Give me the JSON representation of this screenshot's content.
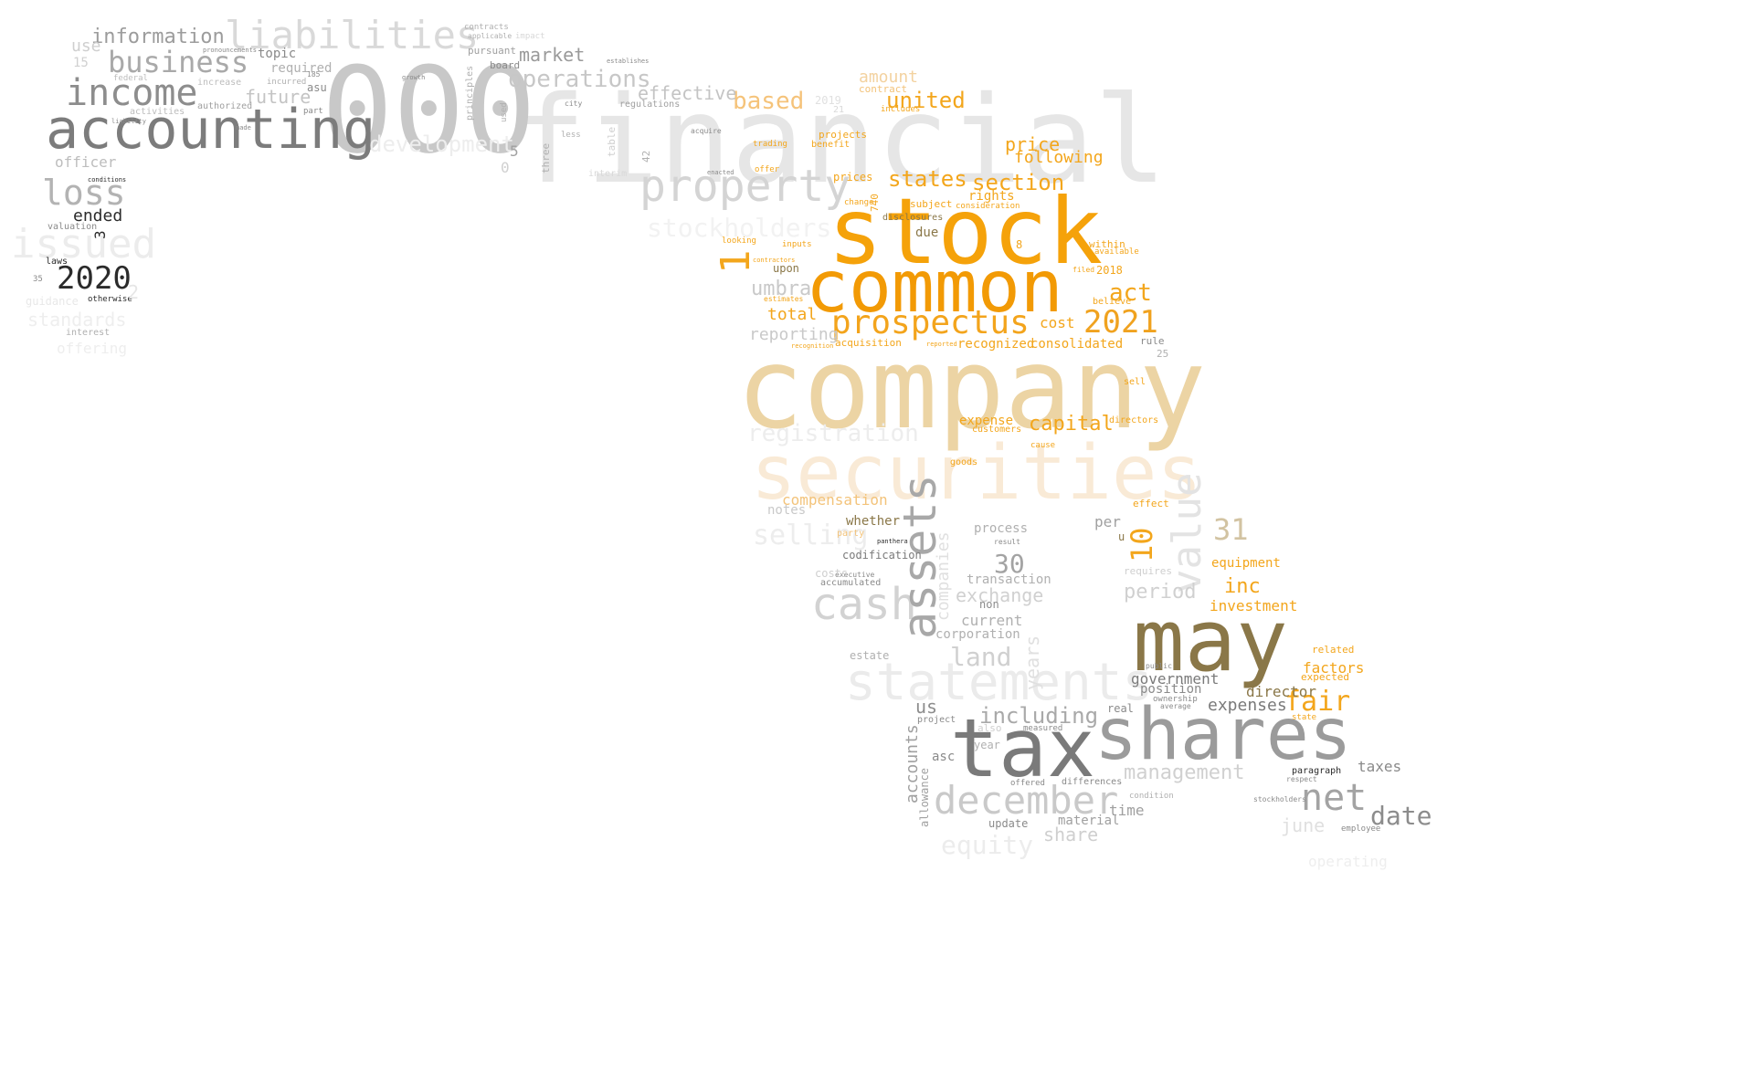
{
  "words": [
    {
      "id": "financial",
      "text": "financial",
      "color": "#e6e6e6"
    },
    {
      "id": "company",
      "text": "company",
      "color": "#ecd4a4"
    },
    {
      "id": "stock",
      "text": "stock",
      "color": "#f5a20a"
    },
    {
      "id": "common",
      "text": "common",
      "color": "#f29a05"
    },
    {
      "id": "000",
      "text": "000",
      "color": "#c8c8c8"
    },
    {
      "id": "securities",
      "text": "securities",
      "color": "#f9ead6"
    },
    {
      "id": "may",
      "text": "may",
      "color": "#8a7748"
    },
    {
      "id": "tax",
      "text": "tax",
      "color": "#7a7a7a"
    },
    {
      "id": "shares",
      "text": "shares",
      "color": "#9b9b9b"
    },
    {
      "id": "accounting",
      "text": "accounting",
      "color": "#7c7c7c"
    },
    {
      "id": "statements",
      "text": "statements",
      "color": "#ebebeb"
    },
    {
      "id": "prospectus",
      "text": "prospectus",
      "color": "#f3a41c"
    },
    {
      "id": "property",
      "text": "property",
      "color": "#d4d4d4"
    },
    {
      "id": "liabilities",
      "text": "liabilities",
      "color": "#d9d9d9"
    },
    {
      "id": "income",
      "text": "income",
      "color": "#8d8d8d"
    },
    {
      "id": "business",
      "text": "business",
      "color": "#a9a9a9"
    },
    {
      "id": "loss",
      "text": "loss",
      "color": "#b3b3b3"
    },
    {
      "id": "issued",
      "text": "issued",
      "color": "#ececec"
    },
    {
      "id": "2020",
      "text": "2020",
      "color": "#2b2b2b"
    },
    {
      "id": "cash",
      "text": "cash",
      "color": "#d2d2d2"
    },
    {
      "id": "assets",
      "text": "assets",
      "color": "#a8a8a8"
    },
    {
      "id": "value",
      "text": "value",
      "color": "#e3e3e3"
    },
    {
      "id": "december",
      "text": "december",
      "color": "#c9c9c9"
    },
    {
      "id": "net",
      "text": "net",
      "color": "#a3a3a3"
    },
    {
      "id": "2021",
      "text": "2021",
      "color": "#f0a21f"
    },
    {
      "id": "operations",
      "text": "operations",
      "color": "#c7c7c7"
    },
    {
      "id": "registration",
      "text": "registration",
      "color": "#ededed"
    },
    {
      "id": "united",
      "text": "united",
      "color": "#f3a61c"
    },
    {
      "id": "states",
      "text": "states",
      "color": "#f3a61c"
    },
    {
      "id": "section",
      "text": "section",
      "color": "#f3a61c"
    },
    {
      "id": "information",
      "text": "information",
      "color": "#9c9c9c"
    },
    {
      "id": "development",
      "text": "development",
      "color": "#ededed"
    },
    {
      "id": "stockholders",
      "text": "stockholders",
      "color": "#f2f2f2"
    },
    {
      "id": "selling",
      "text": "selling",
      "color": "#ededed"
    },
    {
      "id": "fair",
      "text": "fair",
      "color": "#f3a61c"
    },
    {
      "id": "including",
      "text": "including",
      "color": "#a9a9a9"
    },
    {
      "id": "date",
      "text": "date",
      "color": "#8c8c8c"
    },
    {
      "id": "management",
      "text": "management",
      "color": "#d0d0d0"
    },
    {
      "id": "act",
      "text": "act",
      "color": "#f3a61c"
    },
    {
      "id": "capital",
      "text": "capital",
      "color": "#f3a61c"
    },
    {
      "id": "based",
      "text": "based",
      "color": "#f5c37a"
    },
    {
      "id": "umbra",
      "text": "umbra",
      "color": "#c9c9c9"
    },
    {
      "id": "market",
      "text": "market",
      "color": "#9a9a9a"
    },
    {
      "id": "future",
      "text": "future",
      "color": "#c4c4c4"
    },
    {
      "id": "effective",
      "text": "effective",
      "color": "#c4c4c4"
    },
    {
      "id": "price",
      "text": "price",
      "color": "#f3a61c"
    },
    {
      "id": "following",
      "text": "following",
      "color": "#f3a61c"
    },
    {
      "id": "land",
      "text": "land",
      "color": "#d0d0d0"
    },
    {
      "id": "exchange",
      "text": "exchange",
      "color": "#d0d0d0"
    },
    {
      "id": "period",
      "text": "period",
      "color": "#d0d0d0"
    },
    {
      "id": "equity",
      "text": "equity",
      "color": "#ececec"
    },
    {
      "id": "share",
      "text": "share",
      "color": "#cfcfcf"
    },
    {
      "id": "ended",
      "text": "ended",
      "color": "#2b2b2b"
    },
    {
      "id": "officer",
      "text": "officer",
      "color": "#bdbdbd"
    },
    {
      "id": "standards",
      "text": "standards",
      "color": "#eeeeee"
    },
    {
      "id": "30",
      "text": "30",
      "color": "#a3a3a3"
    },
    {
      "id": "31",
      "text": "31",
      "color": "#d2c3a2"
    },
    {
      "id": "10",
      "text": "10",
      "color": "#f3a61c"
    },
    {
      "id": "us",
      "text": "us",
      "color": "#8d8d8d"
    },
    {
      "id": "amount",
      "text": "amount",
      "color": "#f3d2a0"
    },
    {
      "id": "total",
      "text": "total",
      "color": "#f3a61c"
    },
    {
      "id": "reporting",
      "text": "reporting",
      "color": "#c9c9c9"
    },
    {
      "id": "cost",
      "text": "cost",
      "color": "#f3a61c"
    },
    {
      "id": "recognized",
      "text": "recognized",
      "color": "#f3a61c"
    },
    {
      "id": "consolidated",
      "text": "consolidated",
      "color": "#f3a61c"
    },
    {
      "id": "expense",
      "text": "expense",
      "color": "#f3a61c"
    },
    {
      "id": "compensation",
      "text": "compensation",
      "color": "#f3c37a"
    },
    {
      "id": "notes",
      "text": "notes",
      "color": "#c9c9c9"
    },
    {
      "id": "whether",
      "text": "whether",
      "color": "#8a7748"
    },
    {
      "id": "codification",
      "text": "codification",
      "color": "#7a7a7a"
    },
    {
      "id": "process",
      "text": "process",
      "color": "#b0b0b0"
    },
    {
      "id": "transaction",
      "text": "transaction",
      "color": "#b0b0b0"
    },
    {
      "id": "current",
      "text": "current",
      "color": "#b0b0b0"
    },
    {
      "id": "corporation",
      "text": "corporation",
      "color": "#b0b0b0"
    },
    {
      "id": "non",
      "text": "non",
      "color": "#8a8a8a"
    },
    {
      "id": "inc",
      "text": "inc",
      "color": "#f3a61c"
    },
    {
      "id": "investment",
      "text": "investment",
      "color": "#f3a61c"
    },
    {
      "id": "equipment",
      "text": "equipment",
      "color": "#f3a61c"
    },
    {
      "id": "expenses",
      "text": "expenses",
      "color": "#7a7a7a"
    },
    {
      "id": "director",
      "text": "director",
      "color": "#8a7748"
    },
    {
      "id": "factors",
      "text": "factors",
      "color": "#f3a61c"
    },
    {
      "id": "government",
      "text": "government",
      "color": "#7a7a7a"
    },
    {
      "id": "position",
      "text": "position",
      "color": "#8a8a8a"
    },
    {
      "id": "taxes",
      "text": "taxes",
      "color": "#8a8a8a"
    },
    {
      "id": "june",
      "text": "june",
      "color": "#e0e0e0"
    },
    {
      "id": "operating",
      "text": "operating",
      "color": "#eeeeee"
    },
    {
      "id": "accounts",
      "text": "accounts",
      "color": "#a0a0a0"
    },
    {
      "id": "allowance",
      "text": "allowance",
      "color": "#a0a0a0"
    },
    {
      "id": "time",
      "text": "time",
      "color": "#a0a0a0"
    },
    {
      "id": "material",
      "text": "material",
      "color": "#a0a0a0"
    },
    {
      "id": "update",
      "text": "update",
      "color": "#8a8a8a"
    },
    {
      "id": "asc",
      "text": "asc",
      "color": "#8a8a8a"
    },
    {
      "id": "real",
      "text": "real",
      "color": "#8a8a8a"
    },
    {
      "id": "year",
      "text": "year",
      "color": "#b0b0b0"
    },
    {
      "id": "project",
      "text": "project",
      "color": "#8a8a8a"
    },
    {
      "id": "required",
      "text": "required",
      "color": "#b0b0b0"
    },
    {
      "id": "topic",
      "text": "topic",
      "color": "#8a8a8a"
    },
    {
      "id": "use",
      "text": "use",
      "color": "#cfcfcf"
    },
    {
      "id": "15",
      "text": "15",
      "color": "#d0d0d0"
    },
    {
      "id": "guidance",
      "text": "guidance",
      "color": "#e8e8e8"
    },
    {
      "id": "interest",
      "text": "interest",
      "color": "#b0b0b0"
    },
    {
      "id": "offering",
      "text": "offering",
      "color": "#eeeeee"
    },
    {
      "id": "laws",
      "text": "laws",
      "color": "#2b2b2b"
    },
    {
      "id": "otherwise",
      "text": "otherwise",
      "color": "#2b2b2b"
    },
    {
      "id": "valuation",
      "text": "valuation",
      "color": "#8a8a8a"
    },
    {
      "id": "federal",
      "text": "federal",
      "color": "#bdbdbd"
    },
    {
      "id": "increase",
      "text": "increase",
      "color": "#bdbdbd"
    },
    {
      "id": "activities",
      "text": "activities",
      "color": "#bdbdbd"
    },
    {
      "id": "authorized",
      "text": "authorized",
      "color": "#a0a0a0"
    },
    {
      "id": "asu",
      "text": "asu",
      "color": "#8a8a8a"
    },
    {
      "id": "incurred",
      "text": "incurred",
      "color": "#b0b0b0"
    },
    {
      "id": "part",
      "text": "part",
      "color": "#8a8a8a"
    },
    {
      "id": "185",
      "text": "185",
      "color": "#8a8a8a"
    },
    {
      "id": "contracts",
      "text": "contracts",
      "color": "#b0b0b0"
    },
    {
      "id": "applicable",
      "text": "applicable",
      "color": "#b0b0b0"
    },
    {
      "id": "impact",
      "text": "impact",
      "color": "#d8d8d8"
    },
    {
      "id": "pursuant",
      "text": "pursuant",
      "color": "#a0a0a0"
    },
    {
      "id": "board",
      "text": "board",
      "color": "#8a8a8a"
    },
    {
      "id": "regulations",
      "text": "regulations",
      "color": "#a0a0a0"
    },
    {
      "id": "principles",
      "text": "principles",
      "color": "#b0b0b0"
    },
    {
      "id": "used",
      "text": "used",
      "color": "#b0b0b0"
    },
    {
      "id": "three",
      "text": "three",
      "color": "#b0b0b0"
    },
    {
      "id": "less",
      "text": "less",
      "color": "#b0b0b0"
    },
    {
      "id": "table",
      "text": "table",
      "color": "#cfcfcf"
    },
    {
      "id": "interim",
      "text": "interim",
      "color": "#d8d8d8"
    },
    {
      "id": "42",
      "text": "42",
      "color": "#b0b0b0"
    },
    {
      "id": "5",
      "text": "5",
      "color": "#a0a0a0"
    },
    {
      "id": "0",
      "text": "0",
      "color": "#d0d0d0"
    },
    {
      "id": "projects",
      "text": "projects",
      "color": "#f3a61c"
    },
    {
      "id": "benefit",
      "text": "benefit",
      "color": "#f3a61c"
    },
    {
      "id": "2019",
      "text": "2019",
      "color": "#e0e0e0"
    },
    {
      "id": "21",
      "text": "21",
      "color": "#d8d8d8"
    },
    {
      "id": "contract",
      "text": "contract",
      "color": "#f3c37a"
    },
    {
      "id": "includes",
      "text": "includes",
      "color": "#f3a61c"
    },
    {
      "id": "prices",
      "text": "prices",
      "color": "#f3a61c"
    },
    {
      "id": "740",
      "text": "740",
      "color": "#f3a61c"
    },
    {
      "id": "rights",
      "text": "rights",
      "color": "#f3a61c"
    },
    {
      "id": "consideration",
      "text": "consideration",
      "color": "#f3a61c"
    },
    {
      "id": "subject",
      "text": "subject",
      "color": "#f3a61c"
    },
    {
      "id": "due",
      "text": "due",
      "color": "#8a7748"
    },
    {
      "id": "within",
      "text": "within",
      "color": "#f3a61c"
    },
    {
      "id": "available",
      "text": "available",
      "color": "#f3a61c"
    },
    {
      "id": "2018",
      "text": "2018",
      "color": "#f3a61c"
    },
    {
      "id": "believe",
      "text": "believe",
      "color": "#f3a61c"
    },
    {
      "id": "filed",
      "text": "filed",
      "color": "#f3a61c"
    },
    {
      "id": "inputs",
      "text": "inputs",
      "color": "#f3a61c"
    },
    {
      "id": "upon",
      "text": "upon",
      "color": "#8a7748"
    },
    {
      "id": "acquisition",
      "text": "acquisition",
      "color": "#f3a61c"
    },
    {
      "id": "rule",
      "text": "rule",
      "color": "#8a8a8a"
    },
    {
      "id": "25",
      "text": "25",
      "color": "#b0b0b0"
    },
    {
      "id": "8",
      "text": "8",
      "color": "#f3a61c"
    },
    {
      "id": "sell",
      "text": "sell",
      "color": "#f3a61c"
    },
    {
      "id": "directors",
      "text": "directors",
      "color": "#f3a61c"
    },
    {
      "id": "customers",
      "text": "customers",
      "color": "#f3a61c"
    },
    {
      "id": "cause",
      "text": "cause",
      "color": "#f3a61c"
    },
    {
      "id": "goods",
      "text": "goods",
      "color": "#f3a61c"
    },
    {
      "id": "effect",
      "text": "effect",
      "color": "#f3a61c"
    },
    {
      "id": "related",
      "text": "related",
      "color": "#f3a61c"
    },
    {
      "id": "expected",
      "text": "expected",
      "color": "#f3a61c"
    },
    {
      "id": "state",
      "text": "state",
      "color": "#f3a61c"
    },
    {
      "id": "paragraph",
      "text": "paragraph",
      "color": "#2b2b2b"
    },
    {
      "id": "respect",
      "text": "respect",
      "color": "#8a8a8a"
    },
    {
      "id": "employee",
      "text": "employee",
      "color": "#8a8a8a"
    },
    {
      "id": "offered",
      "text": "offered",
      "color": "#8a8a8a"
    },
    {
      "id": "differences",
      "text": "differences",
      "color": "#8a8a8a"
    },
    {
      "id": "condition",
      "text": "condition",
      "color": "#b0b0b0"
    },
    {
      "id": "measured",
      "text": "measured",
      "color": "#8a8a8a"
    },
    {
      "id": "also",
      "text": "also",
      "color": "#cfcfcf"
    },
    {
      "id": "ownership",
      "text": "ownership",
      "color": "#8a8a8a"
    },
    {
      "id": "average",
      "text": "average",
      "color": "#8a8a8a"
    },
    {
      "id": "public",
      "text": "public",
      "color": "#8a8a8a"
    },
    {
      "id": "requires",
      "text": "requires",
      "color": "#cfcfcf"
    },
    {
      "id": "per",
      "text": "per",
      "color": "#a0a0a0"
    },
    {
      "id": "u",
      "text": "u",
      "color": "#8a7748"
    },
    {
      "id": "estate",
      "text": "estate",
      "color": "#b0b0b0"
    },
    {
      "id": "accumulated",
      "text": "accumulated",
      "color": "#8a8a8a"
    },
    {
      "id": "executive",
      "text": "executive",
      "color": "#8a8a8a"
    },
    {
      "id": "costs",
      "text": "costs",
      "color": "#cfcfcf"
    },
    {
      "id": "party",
      "text": "party",
      "color": "#f3c37a"
    },
    {
      "id": "disclosures",
      "text": "disclosures",
      "color": "#8a7748"
    },
    {
      "id": "change",
      "text": "change",
      "color": "#f3a61c"
    },
    {
      "id": "offer",
      "text": "offer",
      "color": "#f3a61c"
    },
    {
      "id": "trading",
      "text": "trading",
      "color": "#f3a61c"
    },
    {
      "id": "acquire",
      "text": "acquire",
      "color": "#8a8a8a"
    },
    {
      "id": "enacted",
      "text": "enacted",
      "color": "#8a8a8a"
    },
    {
      "id": "looking",
      "text": "looking",
      "color": "#f3a61c"
    },
    {
      "id": "contractors",
      "text": "contractors",
      "color": "#f3a61c"
    },
    {
      "id": "estimates",
      "text": "estimates",
      "color": "#f3a61c"
    },
    {
      "id": "recognition",
      "text": "recognition",
      "color": "#f3a61c"
    },
    {
      "id": "reported",
      "text": "reported",
      "color": "#f3a61c"
    },
    {
      "id": "companies",
      "text": "companies",
      "color": "#e0e0e0"
    },
    {
      "id": "years",
      "text": "years",
      "color": "#e0e0e0"
    },
    {
      "id": "result",
      "text": "result",
      "color": "#8a8a8a"
    },
    {
      "id": "establishes",
      "text": "establishes",
      "color": "#8a8a8a"
    },
    {
      "id": "city",
      "text": "city",
      "color": "#8a8a8a"
    },
    {
      "id": "growth",
      "text": "growth",
      "color": "#8a8a8a"
    },
    {
      "id": "pronouncements",
      "text": "pronouncements",
      "color": "#8a8a8a"
    },
    {
      "id": "made",
      "text": "made",
      "color": "#8a8a8a"
    },
    {
      "id": "one",
      "text": "1",
      "color": "#f3a61c"
    },
    {
      "id": "three_digit",
      "text": "3",
      "color": "#2b2b2b"
    },
    {
      "id": "two",
      "text": "2",
      "color": "#e6e6e6"
    },
    {
      "id": "panthera",
      "text": "panthera",
      "color": "#2b2b2b"
    },
    {
      "id": "stockholders2",
      "text": "stockholders",
      "color": "#8a8a8a"
    },
    {
      "id": "conditions",
      "text": "conditions",
      "color": "#2b2b2b"
    },
    {
      "id": "liability",
      "text": "liability",
      "color": "#8a8a8a"
    },
    {
      "id": "35",
      "text": "35",
      "color": "#8a8a8a"
    }
  ]
}
